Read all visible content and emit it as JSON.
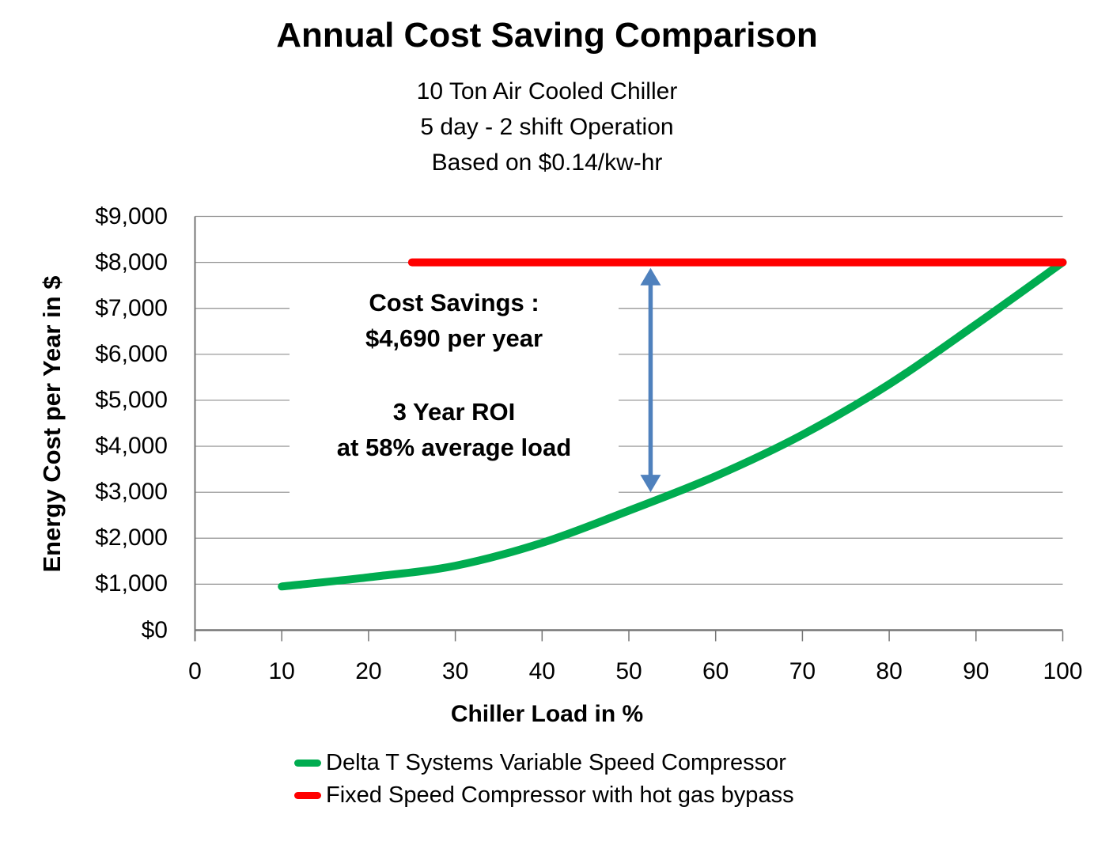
{
  "title": "Annual Cost Saving Comparison",
  "subtitle_lines": [
    "10 Ton Air Cooled Chiller",
    "5 day - 2 shift Operation",
    "Based on $0.14/kw-hr"
  ],
  "chart_data": {
    "type": "line",
    "title": "Annual Cost Saving Comparison",
    "xlabel": "Chiller Load in %",
    "ylabel": "Energy Cost per Year in $",
    "xlim": [
      0,
      100
    ],
    "ylim": [
      0,
      9000
    ],
    "x_ticks": [
      0,
      10,
      20,
      30,
      40,
      50,
      60,
      70,
      80,
      90,
      100
    ],
    "y_ticks": [
      0,
      1000,
      2000,
      3000,
      4000,
      5000,
      6000,
      7000,
      8000,
      9000
    ],
    "y_tick_labels": [
      "$0",
      "$1,000",
      "$2,000",
      "$3,000",
      "$4,000",
      "$5,000",
      "$6,000",
      "$7,000",
      "$8,000",
      "$9,000"
    ],
    "grid": "horizontal",
    "legend_position": "bottom",
    "series": [
      {
        "name": "Delta T Systems Variable Speed Compressor",
        "color": "#00AC50",
        "x": [
          10,
          20,
          30,
          40,
          50,
          60,
          70,
          80,
          90,
          100
        ],
        "y": [
          950,
          1150,
          1400,
          1900,
          2600,
          3350,
          4250,
          5350,
          6650,
          8000
        ]
      },
      {
        "name": "Fixed Speed Compressor with hot gas bypass",
        "color": "#FF0000",
        "x": [
          25,
          100
        ],
        "y": [
          8000,
          8000
        ]
      }
    ],
    "annotations": [
      {
        "lines": [
          "Cost Savings :",
          "$4,690 per year"
        ]
      },
      {
        "lines": [
          "3 Year ROI",
          "at 58% average load"
        ]
      }
    ],
    "arrow": {
      "x": 52.5,
      "y_top": 8000,
      "y_bottom": 3000,
      "color": "#4F81BD"
    },
    "colors": {
      "grid": "#8F8F8F",
      "axis": "#767676",
      "text": "#000000"
    }
  }
}
